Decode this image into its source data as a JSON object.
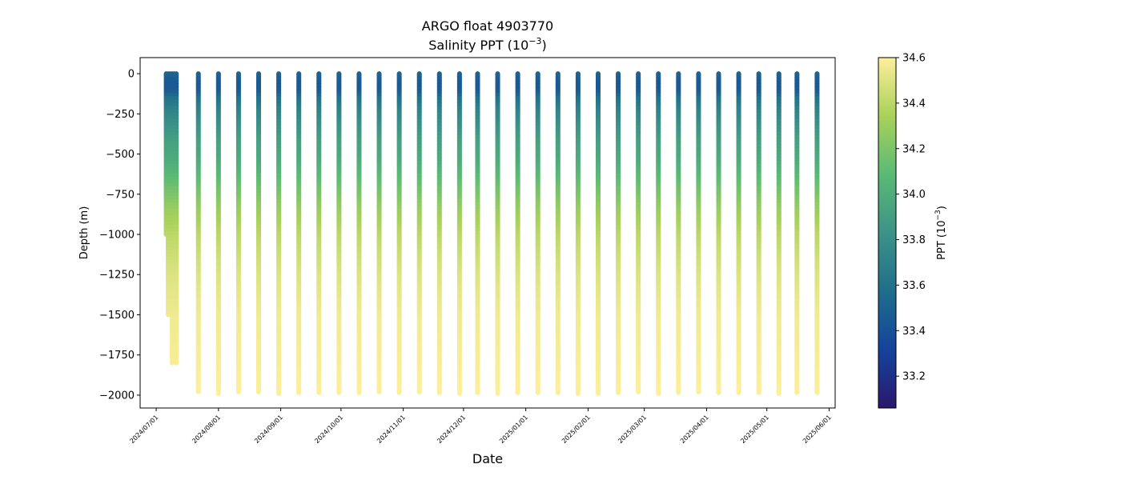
{
  "chart_data": {
    "type": "scatter",
    "title_line1": "ARGO float 4903770",
    "title_line2_prefix": "Salinity PPT (10",
    "title_line2_exponent": "−3",
    "title_line2_suffix": ")",
    "xlabel": "Date",
    "ylabel": "Depth (m)",
    "xlim": [
      "2024-06-23",
      "2025-06-04"
    ],
    "ylim": [
      -2080,
      100
    ],
    "x_ticks": [
      "2024/07/01",
      "2024/08/01",
      "2024/09/01",
      "2024/10/01",
      "2024/11/01",
      "2024/12/01",
      "2025/01/01",
      "2025/02/01",
      "2025/03/01",
      "2025/04/01",
      "2025/05/01",
      "2025/06/01"
    ],
    "y_ticks": [
      0,
      -250,
      -500,
      -750,
      -1000,
      -1250,
      -1500,
      -1750,
      -2000
    ],
    "colorbar": {
      "label_prefix": "PPT (10",
      "label_exponent": "−3",
      "label_suffix": ")",
      "vmin": 33.06,
      "vmax": 34.6,
      "ticks": [
        33.2,
        33.4,
        33.6,
        33.8,
        34.0,
        34.2,
        34.4,
        34.6
      ],
      "colormap": "haline",
      "colors": [
        "#2a186c",
        "#14439c",
        "#206e8b",
        "#3c9387",
        "#5aba75",
        "#a9d15a",
        "#fdef9a"
      ]
    },
    "profiles": [
      {
        "date": "2024-07-06",
        "max_depth": -1000
      },
      {
        "date": "2024-07-07",
        "max_depth": -1500
      },
      {
        "date": "2024-07-08",
        "max_depth": -1500
      },
      {
        "date": "2024-07-09",
        "max_depth": -1800
      },
      {
        "date": "2024-07-10",
        "max_depth": -1250
      },
      {
        "date": "2024-07-11",
        "max_depth": -1800
      },
      {
        "date": "2024-07-22",
        "max_depth": -1980
      },
      {
        "date": "2024-08-01",
        "max_depth": -1990
      },
      {
        "date": "2024-08-11",
        "max_depth": -1980
      },
      {
        "date": "2024-08-21",
        "max_depth": -1980
      },
      {
        "date": "2024-08-31",
        "max_depth": -1990
      },
      {
        "date": "2024-09-10",
        "max_depth": -1985
      },
      {
        "date": "2024-09-20",
        "max_depth": -1985
      },
      {
        "date": "2024-09-30",
        "max_depth": -1985
      },
      {
        "date": "2024-10-10",
        "max_depth": -1985
      },
      {
        "date": "2024-10-20",
        "max_depth": -1980
      },
      {
        "date": "2024-10-30",
        "max_depth": -1985
      },
      {
        "date": "2024-11-09",
        "max_depth": -1980
      },
      {
        "date": "2024-11-19",
        "max_depth": -1985
      },
      {
        "date": "2024-11-29",
        "max_depth": -1990
      },
      {
        "date": "2024-12-08",
        "max_depth": -1985
      },
      {
        "date": "2024-12-18",
        "max_depth": -1990
      },
      {
        "date": "2024-12-28",
        "max_depth": -1985
      },
      {
        "date": "2025-01-07",
        "max_depth": -1985
      },
      {
        "date": "2025-01-17",
        "max_depth": -1985
      },
      {
        "date": "2025-01-27",
        "max_depth": -1990
      },
      {
        "date": "2025-02-06",
        "max_depth": -1990
      },
      {
        "date": "2025-02-16",
        "max_depth": -1985
      },
      {
        "date": "2025-02-26",
        "max_depth": -1980
      },
      {
        "date": "2025-03-08",
        "max_depth": -1990
      },
      {
        "date": "2025-03-18",
        "max_depth": -1985
      },
      {
        "date": "2025-03-28",
        "max_depth": -1980
      },
      {
        "date": "2025-04-07",
        "max_depth": -1985
      },
      {
        "date": "2025-04-17",
        "max_depth": -1985
      },
      {
        "date": "2025-04-27",
        "max_depth": -1985
      },
      {
        "date": "2025-05-07",
        "max_depth": -1990
      },
      {
        "date": "2025-05-16",
        "max_depth": -1985
      },
      {
        "date": "2025-05-26",
        "max_depth": -1985
      }
    ],
    "salinity_profile": [
      {
        "depth": 0,
        "ppt": 33.5
      },
      {
        "depth": -50,
        "ppt": 33.45
      },
      {
        "depth": -100,
        "ppt": 33.45
      },
      {
        "depth": -150,
        "ppt": 33.6
      },
      {
        "depth": -250,
        "ppt": 33.75
      },
      {
        "depth": -400,
        "ppt": 33.9
      },
      {
        "depth": -550,
        "ppt": 34.0
      },
      {
        "depth": -700,
        "ppt": 34.15
      },
      {
        "depth": -850,
        "ppt": 34.3
      },
      {
        "depth": -1000,
        "ppt": 34.4
      },
      {
        "depth": -1250,
        "ppt": 34.5
      },
      {
        "depth": -1500,
        "ppt": 34.56
      },
      {
        "depth": -2000,
        "ppt": 34.6
      }
    ]
  }
}
